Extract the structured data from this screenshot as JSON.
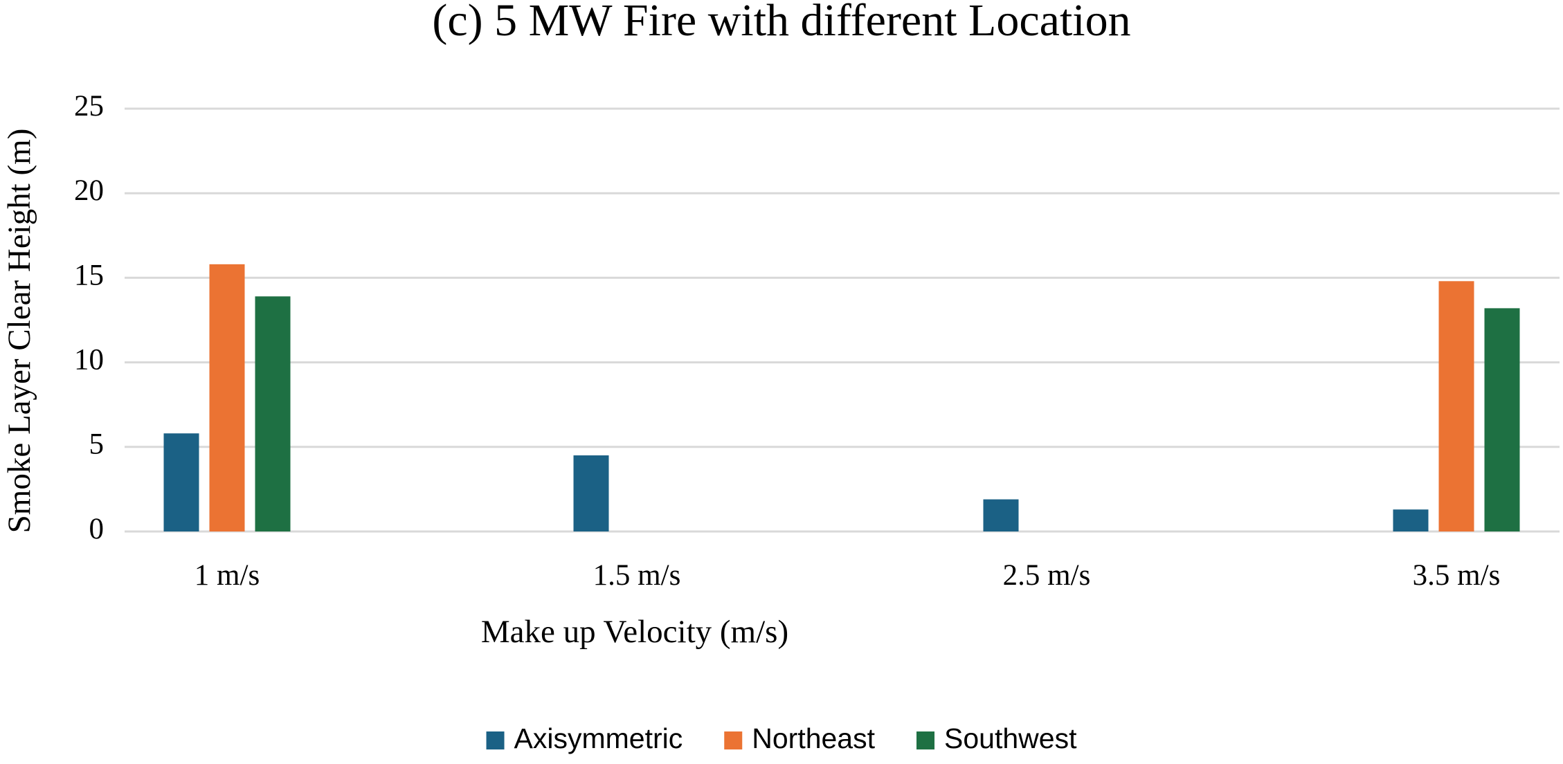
{
  "chart_data": {
    "type": "bar",
    "title": "(c) 5 MW Fire with different Location",
    "x_label": "Make up Velocity (m/s)",
    "y_label": "Smoke Layer Clear Height (m)",
    "categories": [
      "1 m/s",
      "1.5 m/s",
      "2.5 m/s",
      "3.5 m/s"
    ],
    "series": [
      {
        "name": "Axisymmetric",
        "color": "#1b6185",
        "values": [
          5.8,
          4.5,
          1.9,
          1.3
        ]
      },
      {
        "name": "Northeast",
        "color": "#eb7333",
        "values": [
          15.8,
          null,
          null,
          14.8
        ]
      },
      {
        "name": "Southwest",
        "color": "#1e7043",
        "values": [
          13.9,
          null,
          null,
          13.2
        ]
      }
    ],
    "ylim": [
      0,
      25
    ],
    "yticks": [
      0,
      5,
      10,
      15,
      20,
      25
    ],
    "grid": true,
    "legend": "bottom"
  }
}
